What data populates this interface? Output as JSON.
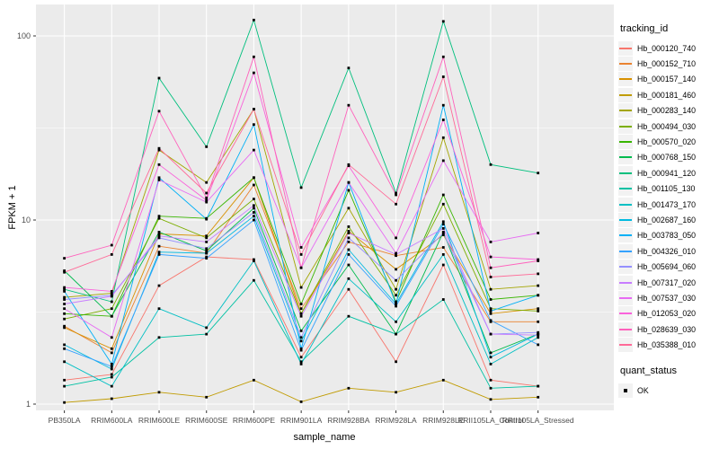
{
  "figure": {
    "xlabel": "sample_name",
    "ylabel": "FPKM + 1",
    "legend_title": "tracking_id",
    "quant_legend_title": "quant_status",
    "quant_legend_item": "OK"
  },
  "chart_data": {
    "type": "line",
    "y_scale": "log10",
    "y_ticks": [
      1,
      10,
      100
    ],
    "y_minor_ticks": [
      3.1623,
      31.623
    ],
    "ylim": [
      0.92,
      148
    ],
    "grid": true,
    "legend_position": "right",
    "panel_bg": "#EBEBEB",
    "grid_color": "#FFFFFF",
    "tick_label_color": "#4D4D4D",
    "marker": {
      "shape": "square",
      "color": "#000000",
      "meaning": "quant_status OK"
    },
    "categories": [
      "PB350LA",
      "RRIM600LA",
      "RRIM600LE",
      "RRIM600SE",
      "RRIM600PE",
      "RRIM901LA",
      "RRIM928BA",
      "RRIM928LA",
      "RRIM928LE",
      "RRII105LA_Control",
      "RRII105LA_Stressed"
    ],
    "series": [
      {
        "name": "Hb_000120_740",
        "color": "#F8766D",
        "values": [
          1.35,
          1.45,
          4.4,
          6.3,
          6.1,
          1.8,
          4.2,
          1.7,
          5.7,
          1.35,
          1.25
        ]
      },
      {
        "name": "Hb_000152_710",
        "color": "#EA8331",
        "values": [
          2.65,
          1.9,
          7.2,
          6.6,
          15.5,
          3.3,
          7.6,
          6.4,
          7.1,
          2.8,
          2.8
        ]
      },
      {
        "name": "Hb_000157_140",
        "color": "#D89000",
        "values": [
          2.6,
          2.0,
          8.4,
          8.2,
          17.0,
          3.1,
          8.7,
          5.4,
          8.3,
          3.1,
          3.3
        ]
      },
      {
        "name": "Hb_000181_460",
        "color": "#C09B00",
        "values": [
          1.02,
          1.07,
          1.16,
          1.09,
          1.35,
          1.03,
          1.22,
          1.16,
          1.35,
          1.06,
          1.09
        ]
      },
      {
        "name": "Hb_000283_140",
        "color": "#A3A500",
        "values": [
          3.8,
          4.0,
          24,
          16,
          40,
          4.3,
          11.6,
          4.2,
          28,
          4.2,
          4.4
        ]
      },
      {
        "name": "Hb_000494_030",
        "color": "#7CAE00",
        "values": [
          2.9,
          3.3,
          10.2,
          8.0,
          13,
          3.1,
          9.2,
          3.9,
          12.2,
          3.3,
          3.2
        ]
      },
      {
        "name": "Hb_000570_020",
        "color": "#39B600",
        "values": [
          3.1,
          3.0,
          10.5,
          10.2,
          17,
          3.5,
          14.5,
          3.6,
          13.7,
          3.7,
          3.9
        ]
      },
      {
        "name": "Hb_000768_150",
        "color": "#00BB4E",
        "values": [
          5.3,
          3.0,
          8.6,
          6.8,
          11.6,
          2.5,
          5.7,
          2.4,
          8.6,
          1.9,
          2.4
        ]
      },
      {
        "name": "Hb_000941_120",
        "color": "#00BF7D",
        "values": [
          4.2,
          3.6,
          59,
          25,
          122,
          15,
          67,
          14,
          120,
          20,
          18
        ]
      },
      {
        "name": "Hb_001105_130",
        "color": "#00C1A3",
        "values": [
          1.25,
          1.4,
          2.3,
          2.4,
          4.7,
          1.7,
          3.0,
          2.4,
          3.7,
          1.22,
          1.25
        ]
      },
      {
        "name": "Hb_001473_170",
        "color": "#00BFC4",
        "values": [
          1.7,
          1.25,
          3.3,
          2.6,
          6.0,
          1.65,
          4.8,
          2.8,
          6.5,
          1.65,
          2.3
        ]
      },
      {
        "name": "Hb_002687_160",
        "color": "#00BAE0",
        "values": [
          2.1,
          1.55,
          6.7,
          6.6,
          10.5,
          2.2,
          6.9,
          3.5,
          9.8,
          1.8,
          2.4
        ]
      },
      {
        "name": "Hb_003783_050",
        "color": "#00B0F6",
        "values": [
          4.1,
          1.65,
          17,
          10.1,
          33,
          2.0,
          16,
          3.5,
          42,
          3.2,
          3.9
        ]
      },
      {
        "name": "Hb_004326_010",
        "color": "#35A2FF",
        "values": [
          2.0,
          1.6,
          6.5,
          6.2,
          10,
          1.96,
          6.5,
          3.4,
          9.5,
          2.85,
          2.1
        ]
      },
      {
        "name": "Hb_005694_060",
        "color": "#9590FF",
        "values": [
          3.7,
          3.9,
          8.0,
          7.0,
          11,
          2.3,
          8.0,
          4.7,
          8.5,
          2.4,
          2.45
        ]
      },
      {
        "name": "Hb_007317_020",
        "color": "#C77CFF",
        "values": [
          3.5,
          3.85,
          8.2,
          7.6,
          12,
          3.0,
          8.5,
          6.5,
          9.0,
          2.4,
          2.37
        ]
      },
      {
        "name": "Hb_007537_030",
        "color": "#E76BF3",
        "values": [
          3.3,
          2.3,
          16.5,
          12.5,
          24,
          5.5,
          16,
          6.6,
          21,
          7.6,
          8.5
        ]
      },
      {
        "name": "Hb_012053_020",
        "color": "#FA62DB",
        "values": [
          4.3,
          4.1,
          20,
          12.8,
          63,
          7.1,
          19.7,
          8.0,
          35,
          6.3,
          6.1
        ]
      },
      {
        "name": "Hb_028639_030",
        "color": "#FF62BC",
        "values": [
          6.2,
          7.3,
          39,
          13.2,
          77,
          5.5,
          42,
          13.7,
          77,
          5.5,
          6.0
        ]
      },
      {
        "name": "Hb_035388_010",
        "color": "#FF6A98",
        "values": [
          5.2,
          6.5,
          24.5,
          14,
          40,
          6.5,
          20,
          12.2,
          60,
          4.9,
          5.1
        ]
      }
    ]
  }
}
